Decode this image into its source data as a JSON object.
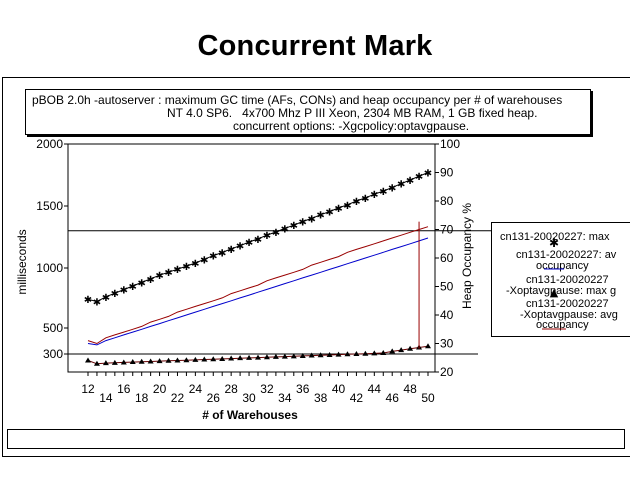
{
  "slide": {
    "title": "Concurrent Mark"
  },
  "subtitle": {
    "line1": "pBOB 2.0h -autoserver : maximum GC time (AFs, CONs) and heap occupancy per # of warehouses",
    "line2": "NT 4.0 SP6.   4x700 Mhz P III Xeon, 2304 MB RAM, 1 GB fixed heap.",
    "line3": "concurrent options: -Xgcpolicy:optavgpause."
  },
  "legend": {
    "entries": [
      {
        "line1": "cn131-20020227: max",
        "line2": ""
      },
      {
        "line1": "cn131-20020227: av",
        "line2": "occupancy"
      },
      {
        "line1": "cn131-20020227",
        "line2": "-Xoptavgpause: max g"
      },
      {
        "line1": "cn131-20020227",
        "line2": "-Xoptavgpause: avg",
        "line3": "occupancy"
      }
    ]
  },
  "chart_data": {
    "type": "line",
    "title": "",
    "xlabel": "# of Warehouses",
    "ylabel": "milliseconds",
    "y2label": "Heap Occupancy %",
    "x": [
      12,
      13,
      14,
      15,
      16,
      17,
      18,
      19,
      20,
      21,
      22,
      23,
      24,
      25,
      26,
      27,
      28,
      29,
      30,
      31,
      32,
      33,
      34,
      35,
      36,
      37,
      38,
      39,
      40,
      41,
      42,
      43,
      44,
      45,
      46,
      47,
      48,
      49,
      50
    ],
    "xlim": [
      12,
      50
    ],
    "ylim": [
      200,
      2000
    ],
    "y2lim": [
      20,
      100
    ],
    "x_ticks_top": [
      "12",
      "16",
      "20",
      "24",
      "28",
      "32",
      "36",
      "40",
      "44",
      "48"
    ],
    "x_ticks_top_values": [
      12,
      16,
      20,
      24,
      28,
      32,
      36,
      40,
      44,
      48
    ],
    "x_ticks_bottom": [
      "14",
      "18",
      "22",
      "26",
      "30",
      "34",
      "38",
      "42",
      "46",
      "50"
    ],
    "x_ticks_bottom_values": [
      14,
      18,
      22,
      26,
      30,
      34,
      38,
      42,
      46,
      50
    ],
    "y_ticks": [
      300,
      500,
      1000,
      1500,
      2000
    ],
    "y2_ticks": [
      20,
      30,
      40,
      50,
      60,
      70,
      80,
      90,
      100
    ],
    "reference_lines_ms": [
      1300,
      300
    ],
    "colors": {
      "max_gc": "#000000",
      "avg_occ": "#0000cc",
      "max_gc_opt": "#660000",
      "avg_occ_opt": "#990000"
    },
    "series": [
      {
        "name": "cn131-20020227: max",
        "axis": "left",
        "marker": "star",
        "values": [
          740,
          720,
          760,
          790,
          820,
          850,
          880,
          910,
          940,
          965,
          990,
          1015,
          1040,
          1070,
          1100,
          1125,
          1155,
          1180,
          1210,
          1235,
          1265,
          1290,
          1320,
          1345,
          1375,
          1400,
          1430,
          1455,
          1485,
          1510,
          1540,
          1565,
          1595,
          1620,
          1650,
          1680,
          1710,
          1740,
          1770
        ]
      },
      {
        "name": "cn131-20020227: av occupancy",
        "axis": "right",
        "marker": "none",
        "values": [
          30,
          29.5,
          31,
          32,
          33,
          34,
          35,
          36,
          37,
          38,
          39,
          40,
          41,
          42,
          43,
          44,
          45,
          46,
          47,
          48,
          49,
          50,
          51,
          52,
          53,
          54,
          55,
          56,
          57,
          58,
          59,
          60,
          61,
          62,
          63,
          64,
          65,
          66,
          67
        ]
      },
      {
        "name": "cn131-20020227 -Xoptavgpause: max g",
        "axis": "left",
        "marker": "triangle",
        "values": [
          250,
          225,
          230,
          232,
          235,
          238,
          240,
          242,
          245,
          248,
          250,
          252,
          255,
          258,
          260,
          262,
          265,
          268,
          270,
          272,
          275,
          278,
          280,
          282,
          285,
          288,
          290,
          292,
          295,
          298,
          300,
          302,
          305,
          308,
          320,
          330,
          340,
          350,
          360
        ]
      },
      {
        "name": "cn131-20020227 -Xoptavgpause: avg occupancy",
        "axis": "right",
        "marker": "none",
        "values": [
          31,
          30,
          32,
          33,
          34,
          35,
          36,
          37.5,
          38.5,
          39.5,
          41,
          42,
          43,
          44,
          45,
          46,
          47.5,
          48.5,
          49.5,
          50.5,
          52,
          53,
          54,
          55,
          56,
          57.5,
          58.5,
          59.5,
          60.5,
          62,
          63,
          64,
          65,
          66,
          67,
          68,
          69,
          70,
          71
        ]
      }
    ]
  }
}
